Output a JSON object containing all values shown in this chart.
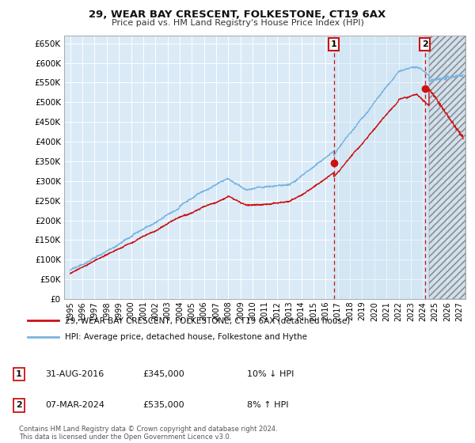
{
  "title": "29, WEAR BAY CRESCENT, FOLKESTONE, CT19 6AX",
  "subtitle": "Price paid vs. HM Land Registry's House Price Index (HPI)",
  "ylim": [
    0,
    670000
  ],
  "yticks": [
    0,
    50000,
    100000,
    150000,
    200000,
    250000,
    300000,
    350000,
    400000,
    450000,
    500000,
    550000,
    600000,
    650000
  ],
  "background_color": "#daeaf7",
  "grid_color": "#ffffff",
  "hpi_color": "#7ab4e0",
  "price_color": "#cc1111",
  "marker1_x": 2016.67,
  "marker1_y": 345000,
  "marker2_x": 2024.17,
  "marker2_y": 535000,
  "legend_label_price": "29, WEAR BAY CRESCENT, FOLKESTONE, CT19 6AX (detached house)",
  "legend_label_hpi": "HPI: Average price, detached house, Folkestone and Hythe",
  "note1_label": "1",
  "note1_date": "31-AUG-2016",
  "note1_price": "£345,000",
  "note1_hpi": "10% ↓ HPI",
  "note2_label": "2",
  "note2_date": "07-MAR-2024",
  "note2_price": "£535,000",
  "note2_hpi": "8% ↑ HPI",
  "copyright": "Contains HM Land Registry data © Crown copyright and database right 2024.\nThis data is licensed under the Open Government Licence v3.0.",
  "xlim_left": 1994.5,
  "xlim_right": 2027.5,
  "hatch_start": 2024.5
}
